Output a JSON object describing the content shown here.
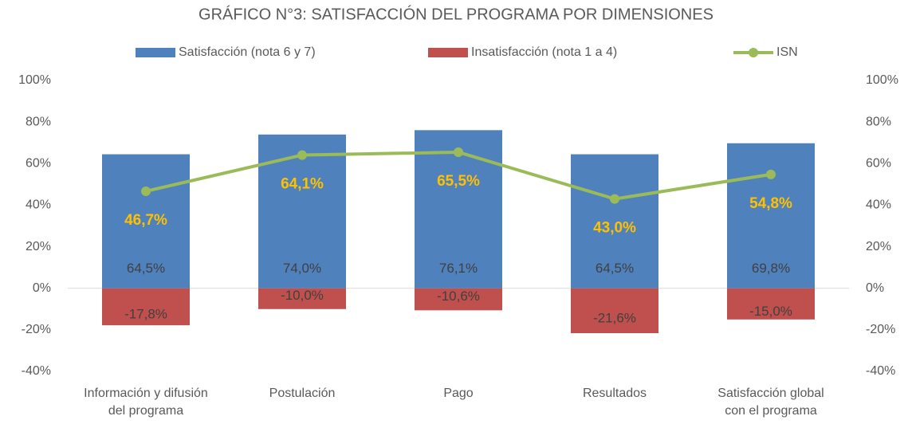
{
  "chart_data": {
    "type": "bar",
    "title": "GRÁFICO N°3: SATISFACCIÓN DEL PROGRAMA POR DIMENSIONES",
    "categories": [
      "Información y difusión del programa",
      "Postulación",
      "Pago",
      "Resultados",
      "Satisfacción global con el programa"
    ],
    "series": [
      {
        "name": "Satisfacción (nota 6 y 7)",
        "type": "bar",
        "color": "#4f81bd",
        "values": [
          64.5,
          74.0,
          76.1,
          64.5,
          69.8
        ],
        "value_labels": [
          "64,5%",
          "74,0%",
          "76,1%",
          "64,5%",
          "69,8%"
        ]
      },
      {
        "name": "Insatisfacción (nota 1 a 4)",
        "type": "bar",
        "color": "#c0504d",
        "values": [
          -17.8,
          -10.0,
          -10.6,
          -21.6,
          -15.0
        ],
        "value_labels": [
          "-17,8%",
          "-10,0%",
          "-10,6%",
          "-21,6%",
          "-15,0%"
        ]
      },
      {
        "name": "ISN",
        "type": "line",
        "color": "#9bbb59",
        "label_color": "#ffc000",
        "values": [
          46.7,
          64.1,
          65.5,
          43.0,
          54.8
        ],
        "value_labels": [
          "46,7%",
          "64,1%",
          "65,5%",
          "43,0%",
          "54,8%"
        ]
      }
    ],
    "ylim": [
      -40,
      100
    ],
    "yticks": [
      {
        "value": -40,
        "label": "-40%"
      },
      {
        "value": -20,
        "label": "-20%"
      },
      {
        "value": 0,
        "label": "0%"
      },
      {
        "value": 20,
        "label": "20%"
      },
      {
        "value": 40,
        "label": "40%"
      },
      {
        "value": 60,
        "label": "60%"
      },
      {
        "value": 80,
        "label": "80%"
      },
      {
        "value": 100,
        "label": "100%"
      }
    ],
    "y2lim": [
      -40,
      100
    ],
    "y2ticks": [
      {
        "value": -40,
        "label": "-40%"
      },
      {
        "value": -20,
        "label": "-20%"
      },
      {
        "value": 0,
        "label": "0%"
      },
      {
        "value": 20,
        "label": "20%"
      },
      {
        "value": 40,
        "label": "40%"
      },
      {
        "value": 60,
        "label": "60%"
      },
      {
        "value": 80,
        "label": "80%"
      },
      {
        "value": 100,
        "label": "100%"
      }
    ],
    "legend": "top",
    "grid": false
  }
}
